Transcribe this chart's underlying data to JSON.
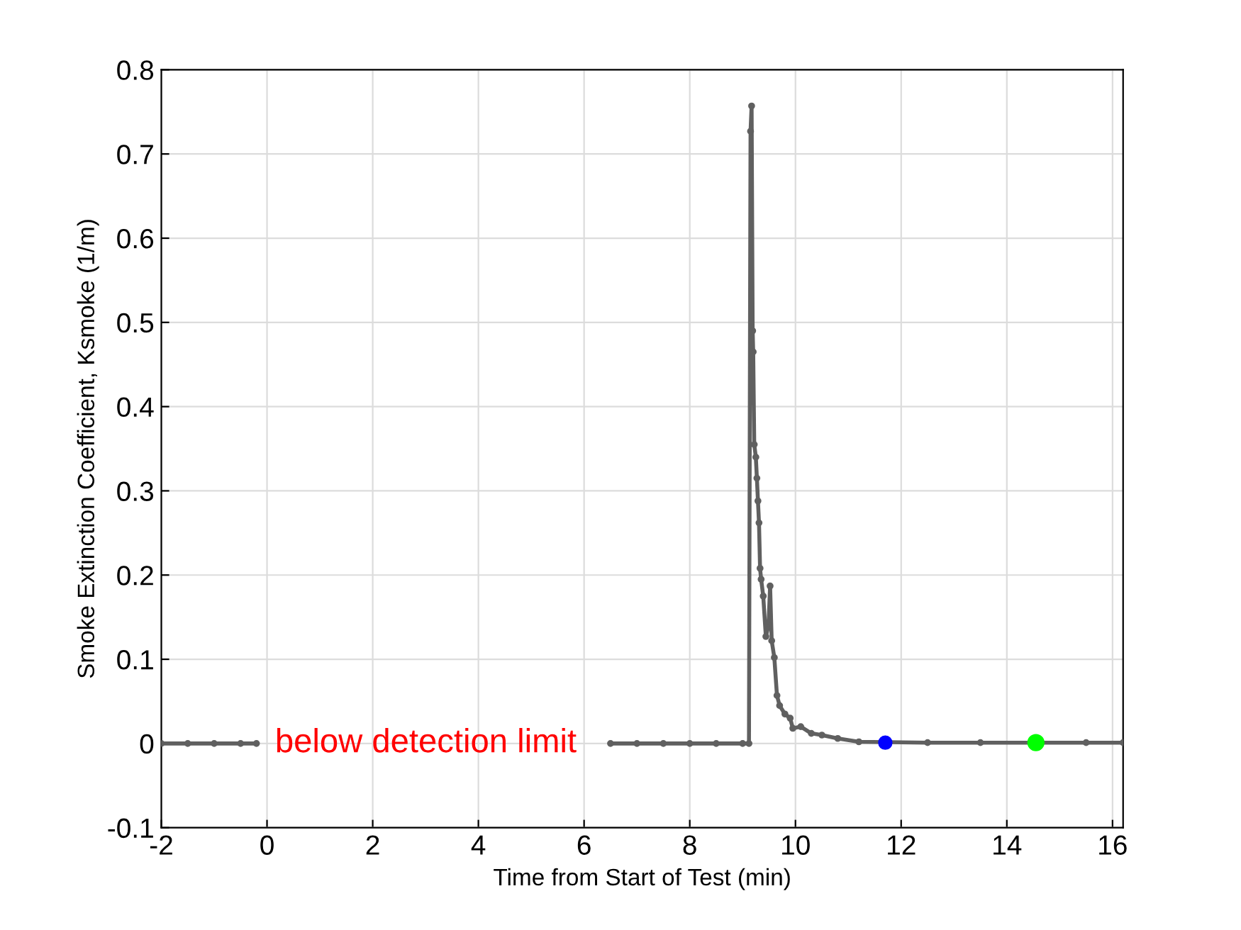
{
  "chart_data": {
    "type": "line",
    "xlabel": "Time from Start of Test (min)",
    "ylabel": "Smoke Extinction Coefficient, Ksmoke (1/m)",
    "xlim": [
      -2,
      16.2
    ],
    "ylim": [
      -0.1,
      0.8
    ],
    "xticks": [
      -2,
      0,
      2,
      4,
      6,
      8,
      10,
      12,
      14,
      16
    ],
    "yticks": [
      {
        "value": -0.1,
        "label": "-0.1"
      },
      0,
      0.1,
      0.2,
      0.3,
      0.4,
      0.5,
      0.6,
      0.7,
      0.8
    ],
    "grid": true,
    "series": [
      {
        "color": "#606060",
        "marker": "circle",
        "x": [
          -2,
          -1.5,
          -1,
          -0.5,
          -0.2,
          6.4,
          6.5,
          7,
          7.5,
          8,
          8.5,
          9,
          9.12,
          9.15,
          9.17,
          9.19,
          9.2,
          9.22,
          9.25,
          9.27,
          9.29,
          9.31,
          9.33,
          9.35,
          9.39,
          9.44,
          9.49,
          9.52,
          9.55,
          9.6,
          9.65,
          9.7,
          9.8,
          9.9,
          9.95,
          10.1,
          10.3,
          10.5,
          10.8,
          11.2,
          12.5,
          13.5,
          15.5,
          16.2
        ],
        "values": [
          0,
          0,
          0,
          0,
          0,
          null,
          0,
          0,
          0,
          0,
          0,
          0,
          0,
          0.727,
          0.757,
          0.49,
          0.465,
          0.355,
          0.34,
          0.315,
          0.288,
          0.262,
          0.208,
          0.195,
          0.175,
          0.127,
          0.14,
          0.187,
          0.122,
          0.102,
          0.057,
          0.045,
          0.035,
          0.03,
          0.018,
          0.02,
          0.012,
          0.01,
          0.006,
          0.002,
          0.001,
          0.001,
          0.001,
          0.001
        ]
      },
      {
        "type": "scatter",
        "color": "#0000ff",
        "x": [
          11.7
        ],
        "values": [
          0.001
        ]
      },
      {
        "type": "scatter",
        "color": "#00ff00",
        "x": [
          14.55
        ],
        "values": [
          0.001
        ]
      }
    ],
    "annotations": [
      "below detection limit"
    ]
  }
}
